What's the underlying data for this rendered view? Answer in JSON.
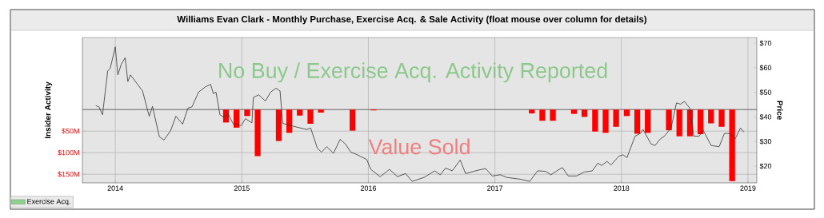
{
  "chart_data": {
    "type": "bar",
    "title": "Williams Evan Clark - Monthly Purchase, Exercise Acq. & Sale Activity (float mouse over column for details)",
    "ylabel": "Insider Activity",
    "y2label": "Price",
    "xlim": [
      2013.74,
      2019.07
    ],
    "xticks": [
      2014,
      2015,
      2016,
      2017,
      2018,
      2019
    ],
    "ylim": [
      170,
      -167
    ],
    "yticks": [
      {
        "value": 50,
        "label": "$50M"
      },
      {
        "value": 100,
        "label": "$100M"
      },
      {
        "value": 150,
        "label": "$150M"
      }
    ],
    "y2lim": [
      13.2,
      72.3
    ],
    "y2ticks": [
      {
        "value": 20,
        "label": "$20"
      },
      {
        "value": 30,
        "label": "$30"
      },
      {
        "value": 40,
        "label": "$40"
      },
      {
        "value": 50,
        "label": "$50"
      },
      {
        "value": 60,
        "label": "$60"
      },
      {
        "value": 70,
        "label": "$70"
      }
    ],
    "grid": true,
    "legend": "bottom left",
    "marker": "none",
    "ref_lines": [
      {
        "axis": "y",
        "value": 0,
        "color": "#555555"
      }
    ],
    "annotations": [
      "No Buy / Exercise Acq. Activity Reported",
      "Value Sold"
    ],
    "series": [
      {
        "color": "#ff0000",
        "x": [
          2014.875,
          2014.958,
          2015.042,
          2015.125,
          2015.292,
          2015.375,
          2015.458,
          2015.542,
          2015.625,
          2015.875,
          2016.042,
          2017.292,
          2017.375,
          2017.458,
          2017.625,
          2017.708,
          2017.792,
          2017.875,
          2017.958,
          2018.042,
          2018.125,
          2018.208,
          2018.375,
          2018.458,
          2018.542,
          2018.625,
          2018.708,
          2018.792,
          2018.875
        ],
        "values": [
          30,
          42,
          15,
          108,
          73,
          54,
          14,
          33,
          7,
          49,
          2,
          9,
          26,
          26,
          10,
          17,
          51,
          54,
          40,
          15,
          56,
          54,
          48,
          62,
          62,
          57,
          32,
          40,
          166
        ]
      },
      {
        "type": "bar",
        "name": "Exercise Acq.",
        "color": "#8fd18f"
      },
      {
        "type": "line",
        "axis": "y2",
        "color": "#333333",
        "x": [
          2013.846,
          2013.871,
          2013.899,
          2013.94,
          2013.96,
          2014.0,
          2014.02,
          2014.047,
          2014.078,
          2014.099,
          2014.12,
          2014.215,
          2014.268,
          2014.294,
          2014.348,
          2014.384,
          2014.437,
          2014.479,
          2014.532,
          2014.574,
          2014.606,
          2014.658,
          2014.711,
          2014.753,
          2014.775,
          2014.796,
          2014.827,
          2014.859,
          2014.89,
          2014.933,
          2014.996,
          2015.028,
          2015.08,
          2015.091,
          2015.133,
          2015.186,
          2015.228,
          2015.27,
          2015.302,
          2015.323,
          2015.386,
          2015.449,
          2015.513,
          2015.544,
          2015.597,
          2015.629,
          2015.671,
          2015.724,
          2015.777,
          2015.819,
          2015.861,
          2015.914,
          2015.987,
          2016.019,
          2016.093,
          2016.167,
          2016.23,
          2016.294,
          2016.346,
          2016.44,
          2016.525,
          2016.568,
          2016.61,
          2016.663,
          2016.726,
          2016.768,
          2016.863,
          2016.927,
          2016.979,
          2017.042,
          2017.095,
          2017.2,
          2017.275,
          2017.338,
          2017.4,
          2017.443,
          2017.496,
          2017.534,
          2017.58,
          2017.644,
          2017.707,
          2017.77,
          2017.813,
          2017.844,
          2017.886,
          2017.918,
          2017.981,
          2018.013,
          2018.044,
          2018.108,
          2018.15,
          2018.171,
          2018.234,
          2018.266,
          2018.308,
          2018.34,
          2018.392,
          2018.435,
          2018.467,
          2018.498,
          2018.54,
          2018.572,
          2018.614,
          2018.646,
          2018.709,
          2018.772,
          2018.814,
          2018.857,
          2018.899,
          2018.941,
          2018.968
        ],
        "values": [
          44.6,
          44.1,
          40.9,
          58.7,
          59.8,
          68.5,
          57.1,
          61.4,
          64.1,
          54.4,
          57.1,
          50.6,
          40.3,
          44.3,
          32.0,
          30.6,
          34.4,
          40.3,
          37.1,
          43.6,
          44.1,
          50.1,
          52.2,
          53.3,
          49.5,
          50.1,
          40.9,
          39.8,
          41.4,
          37.1,
          36.5,
          39.3,
          37.6,
          47.9,
          49.0,
          46.5,
          50.1,
          51.7,
          50.6,
          37.4,
          36.5,
          35.7,
          34.9,
          35.5,
          27.3,
          25.7,
          27.9,
          25.2,
          30.9,
          29.0,
          25.7,
          24.6,
          22.7,
          18.7,
          15.7,
          18.7,
          15.7,
          17.0,
          13.8,
          15.4,
          18.1,
          16.5,
          19.2,
          18.1,
          22.5,
          17.0,
          18.3,
          19.0,
          16.0,
          16.5,
          15.4,
          14.7,
          13.8,
          18.1,
          17.9,
          16.5,
          18.3,
          19.4,
          16.0,
          16.0,
          17.6,
          18.1,
          21.2,
          20.3,
          21.9,
          20.5,
          24.1,
          24.6,
          23.5,
          32.2,
          33.3,
          34.9,
          29.0,
          28.4,
          31.1,
          32.2,
          35.5,
          45.7,
          45.2,
          46.3,
          43.6,
          32.2,
          32.2,
          34.6,
          28.4,
          27.9,
          33.3,
          33.3,
          31.1,
          35.5,
          33.8
        ]
      }
    ]
  }
}
